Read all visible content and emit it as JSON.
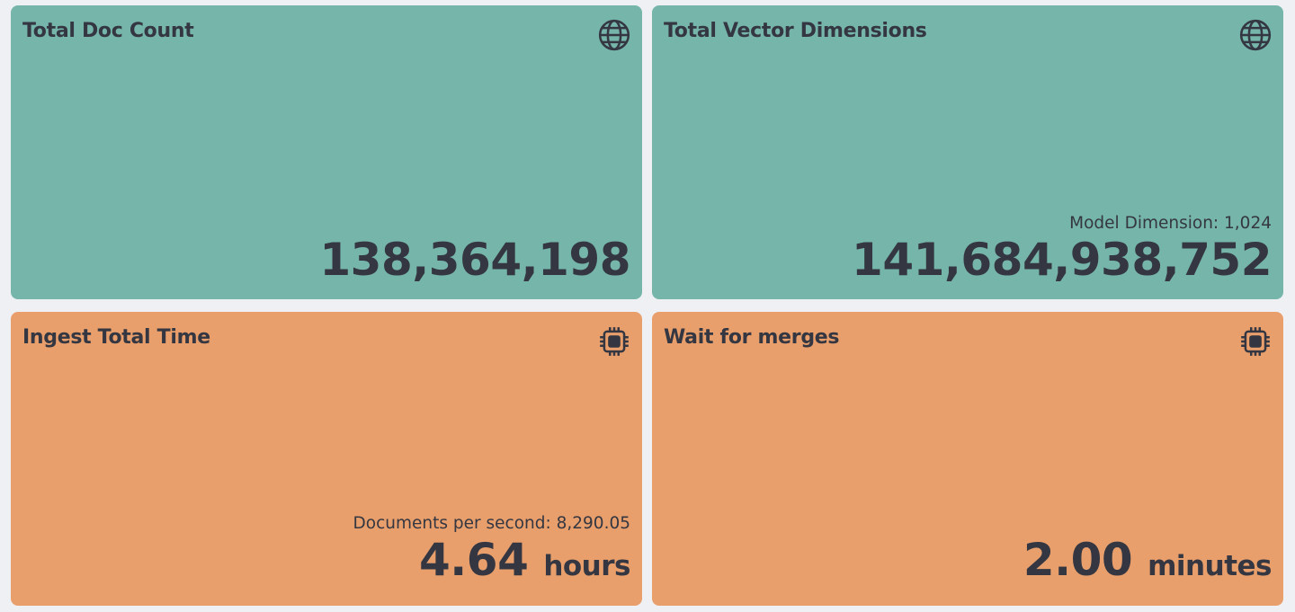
{
  "colors": {
    "teal": "#76b5a9",
    "orange": "#e99f6c",
    "text": "#343741"
  },
  "cards": [
    {
      "title": "Total Doc Count",
      "icon": "globe-icon",
      "subtitle": "",
      "value": "138,364,198",
      "unit": ""
    },
    {
      "title": "Total Vector Dimensions",
      "icon": "globe-icon",
      "subtitle": "Model Dimension: 1,024",
      "value": "141,684,938,752",
      "unit": ""
    },
    {
      "title": "Ingest Total Time",
      "icon": "chip-icon",
      "subtitle": "Documents per second: 8,290.05",
      "value": "4.64",
      "unit": "hours"
    },
    {
      "title": "Wait for merges",
      "icon": "chip-icon",
      "subtitle": "",
      "value": "2.00",
      "unit": "minutes"
    }
  ]
}
